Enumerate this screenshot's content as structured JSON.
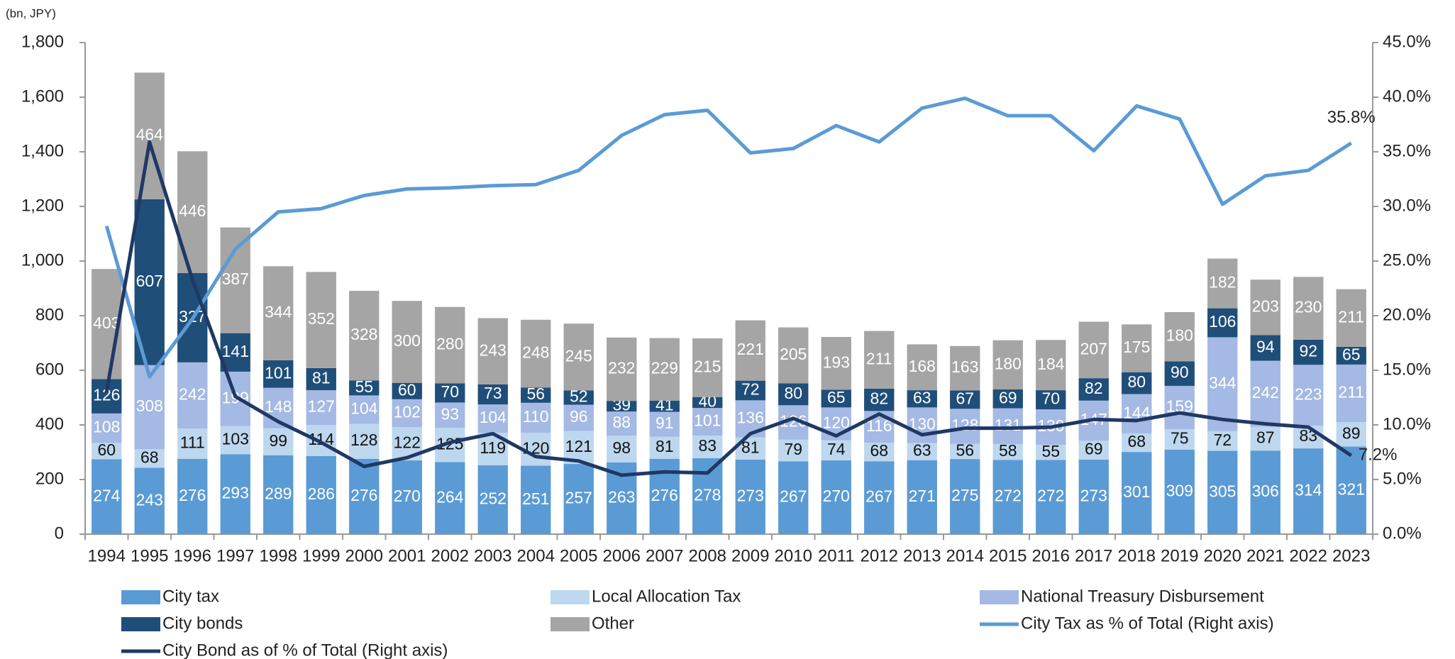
{
  "chart_data": {
    "type": "stacked_bar_line",
    "unit_label": "(bn, JPY)",
    "categories": [
      "1994",
      "1995",
      "1996",
      "1997",
      "1998",
      "1999",
      "2000",
      "2001",
      "2002",
      "2003",
      "2004",
      "2005",
      "2006",
      "2007",
      "2008",
      "2009",
      "2010",
      "2011",
      "2012",
      "2013",
      "2014",
      "2015",
      "2016",
      "2017",
      "2018",
      "2019",
      "2020",
      "2021",
      "2022",
      "2023"
    ],
    "series": [
      {
        "name": "City tax",
        "type": "bar",
        "color": "#5b9bd5",
        "label_color": "#ffffff",
        "values": [
          274,
          243,
          276,
          293,
          289,
          286,
          276,
          270,
          264,
          252,
          251,
          257,
          263,
          276,
          278,
          273,
          267,
          270,
          267,
          271,
          275,
          272,
          272,
          273,
          301,
          309,
          305,
          306,
          314,
          321
        ]
      },
      {
        "name": "Local Allocation Tax",
        "type": "bar",
        "color": "#bdd7ee",
        "label_color": "#111111",
        "values": [
          60,
          68,
          111,
          103,
          99,
          114,
          128,
          122,
          125,
          119,
          120,
          121,
          98,
          81,
          83,
          81,
          79,
          74,
          68,
          63,
          56,
          58,
          55,
          69,
          68,
          75,
          72,
          87,
          83,
          89
        ]
      },
      {
        "name": "National Treasury Disbursement",
        "type": "bar",
        "color": "#a4b9e3",
        "label_color": "#ffffff",
        "values": [
          108,
          308,
          242,
          199,
          148,
          127,
          104,
          102,
          93,
          104,
          110,
          96,
          88,
          91,
          101,
          136,
          126,
          120,
          116,
          130,
          128,
          131,
          130,
          147,
          144,
          159,
          344,
          242,
          223,
          211
        ]
      },
      {
        "name": "City bonds",
        "type": "bar",
        "color": "#1f4e79",
        "label_color": "#ffffff",
        "values": [
          126,
          607,
          327,
          141,
          101,
          81,
          55,
          60,
          70,
          73,
          56,
          52,
          39,
          41,
          40,
          72,
          80,
          65,
          82,
          63,
          67,
          69,
          70,
          82,
          80,
          90,
          106,
          94,
          92,
          65
        ]
      },
      {
        "name": "Other",
        "type": "bar",
        "color": "#a5a5a5",
        "label_color": "#ffffff",
        "values": [
          403,
          464,
          446,
          387,
          344,
          352,
          328,
          300,
          280,
          243,
          248,
          245,
          232,
          229,
          215,
          221,
          205,
          193,
          211,
          168,
          163,
          180,
          184,
          207,
          175,
          180,
          182,
          203,
          230,
          211
        ]
      },
      {
        "name": "City Tax as % of Total (Right axis)",
        "type": "line",
        "axis": "y2",
        "color": "#5b9bd5",
        "last_label": "35.8%",
        "values": [
          28.2,
          14.4,
          19.7,
          26.1,
          29.5,
          29.8,
          31.0,
          31.6,
          31.7,
          31.9,
          32.0,
          33.3,
          36.5,
          38.4,
          38.8,
          34.9,
          35.3,
          37.4,
          35.9,
          39.0,
          39.9,
          38.3,
          38.3,
          35.1,
          39.2,
          38.0,
          30.2,
          32.8,
          33.3,
          35.8
        ]
      },
      {
        "name": "City Bond as of % of Total (Right axis)",
        "type": "line",
        "axis": "y2",
        "color": "#203864",
        "last_label": "7.2%",
        "values": [
          13.0,
          35.9,
          23.3,
          12.6,
          10.3,
          8.4,
          6.2,
          7.0,
          8.4,
          9.2,
          7.1,
          6.7,
          5.4,
          5.7,
          5.6,
          9.2,
          10.6,
          9.0,
          11.0,
          9.1,
          9.7,
          9.7,
          9.8,
          10.5,
          10.4,
          11.1,
          10.5,
          10.1,
          9.8,
          7.2
        ]
      }
    ],
    "ylim": [
      0,
      1800
    ],
    "yticks": [
      0,
      200,
      400,
      600,
      800,
      {
        "value": 1000,
        "label": "1,000"
      },
      {
        "value": 1200,
        "label": "1,200"
      },
      {
        "value": 1400,
        "label": "1,400"
      },
      {
        "value": 1600,
        "label": "1,600"
      },
      {
        "value": 1800,
        "label": "1,800"
      }
    ],
    "y2lim": [
      0,
      45
    ],
    "y2ticks": [
      {
        "value": 0,
        "label": "0.0%"
      },
      {
        "value": 5,
        "label": "5.0%"
      },
      {
        "value": 10,
        "label": "10.0%"
      },
      {
        "value": 15,
        "label": "15.0%"
      },
      {
        "value": 20,
        "label": "20.0%"
      },
      {
        "value": 25,
        "label": "25.0%"
      },
      {
        "value": 30,
        "label": "30.0%"
      },
      {
        "value": 35,
        "label": "35.0%"
      },
      {
        "value": 40,
        "label": "40.0%"
      },
      {
        "value": 45,
        "label": "45.0%"
      }
    ],
    "legend": "bottom"
  }
}
